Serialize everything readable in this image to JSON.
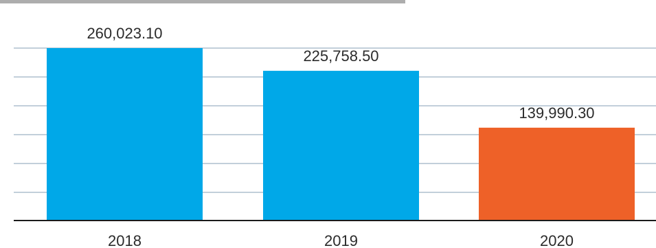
{
  "chart_data": {
    "type": "bar",
    "categories": [
      "2018",
      "2019",
      "2020"
    ],
    "values": [
      260023.1,
      225758.5,
      139990.3
    ],
    "value_labels": [
      "260,023.10",
      "225,758.50",
      "139,990.30"
    ],
    "bar_colors": [
      "#00a8e8",
      "#00a8e8",
      "#ee6128"
    ],
    "title": "",
    "xlabel": "",
    "ylabel": "",
    "ylim": [
      0,
      300000
    ],
    "gridlines": 7,
    "grid": true,
    "legend": "none"
  }
}
